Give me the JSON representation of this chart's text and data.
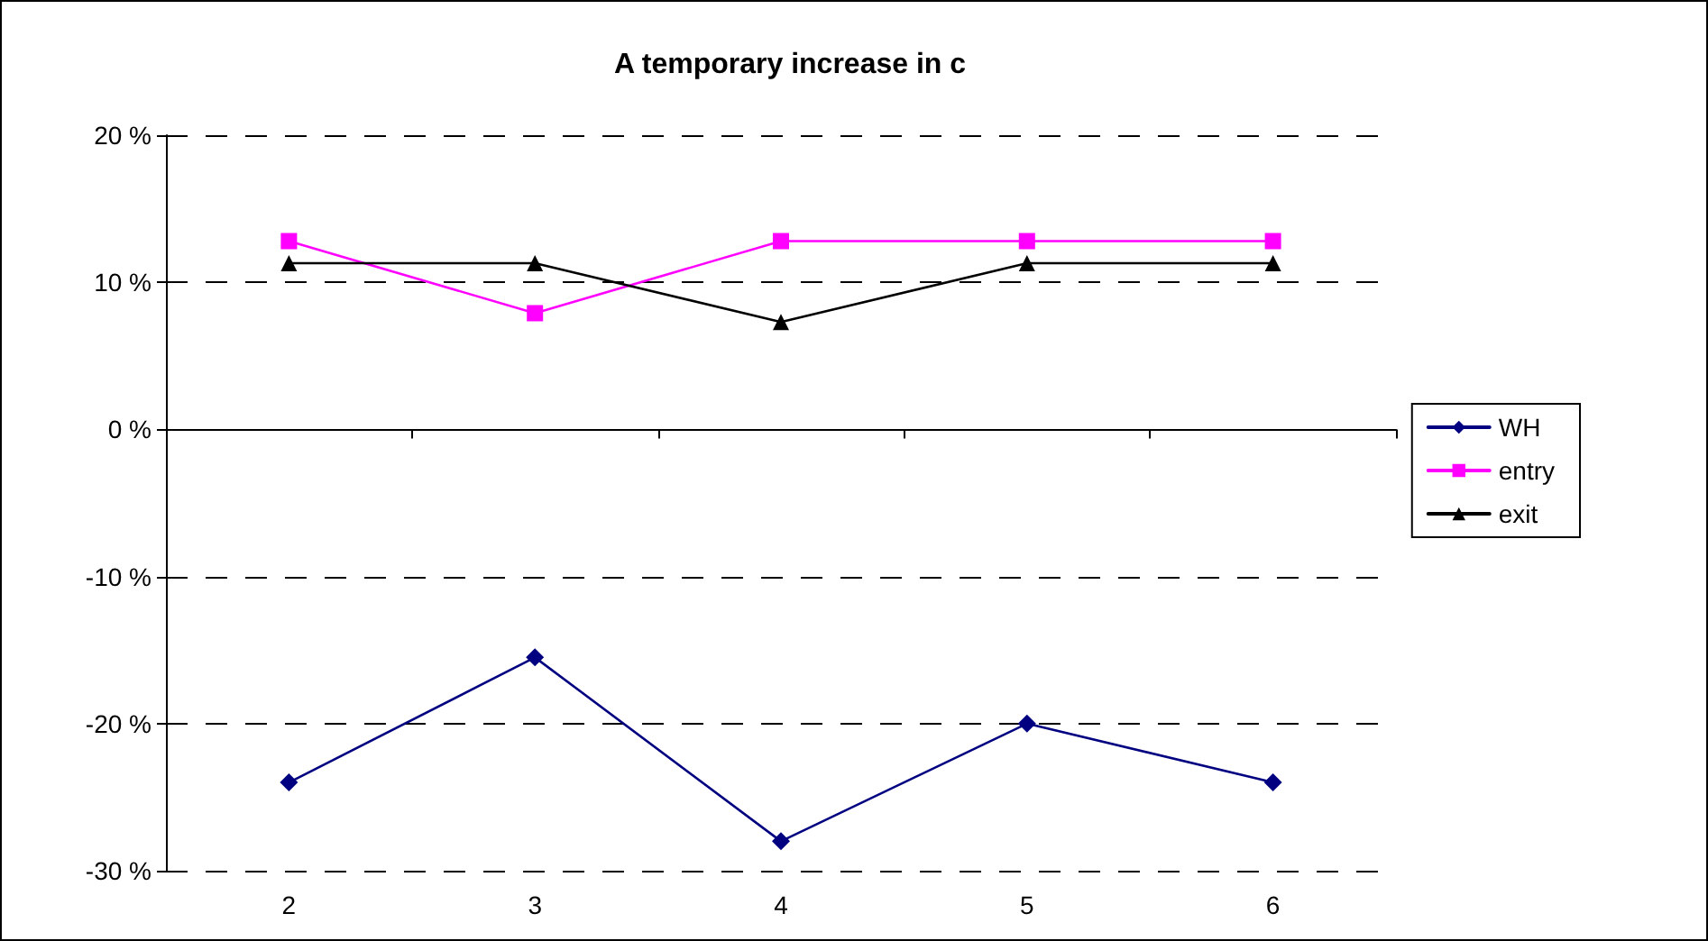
{
  "chart_data": {
    "type": "line",
    "title": "A temporary increase in c",
    "categories": [
      "2",
      "3",
      "4",
      "5",
      "6"
    ],
    "series": [
      {
        "name": "WH",
        "color": "#000080",
        "marker": "diamond",
        "values": [
          -24,
          -15.5,
          -28,
          -20,
          -24
        ]
      },
      {
        "name": "entry",
        "color": "#ff00ff",
        "marker": "square",
        "values": [
          12.8,
          7.9,
          12.8,
          12.8,
          12.8
        ]
      },
      {
        "name": "exit",
        "color": "#000000",
        "marker": "triangle",
        "values": [
          11.3,
          11.3,
          7.3,
          11.3,
          11.3
        ]
      }
    ],
    "ylim": [
      -30,
      20
    ],
    "yticks": [
      {
        "value": -30,
        "label": "-30 %"
      },
      {
        "value": -20,
        "label": "-20 %"
      },
      {
        "value": -10,
        "label": "-10 %"
      },
      {
        "value": 0,
        "label": "0 %"
      },
      {
        "value": 10,
        "label": "10 %"
      },
      {
        "value": 20,
        "label": "20 %"
      }
    ],
    "grid": "y",
    "legend": "right",
    "line_style": "solid"
  }
}
